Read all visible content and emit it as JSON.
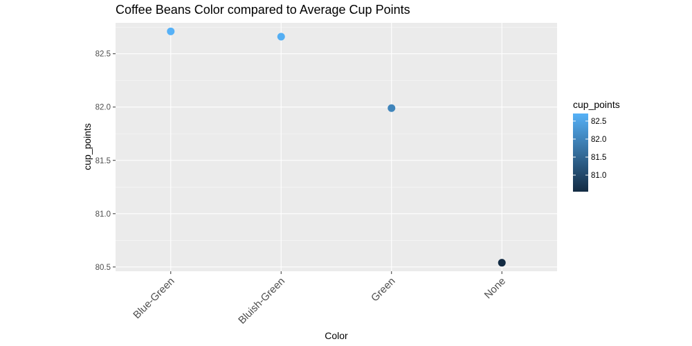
{
  "chart_data": {
    "type": "scatter",
    "title": "Coffee Beans Color compared to Average Cup Points",
    "xlabel": "Color",
    "ylabel": "cup_points",
    "categories": [
      "Blue-Green",
      "Bluish-Green",
      "Green",
      "None"
    ],
    "values": [
      82.71,
      82.66,
      81.99,
      80.54
    ],
    "ylim": [
      80.46,
      82.79
    ],
    "yticks": [
      80.5,
      81.0,
      81.5,
      82.0,
      82.5
    ],
    "ytick_labels": [
      "80.5",
      "81.0",
      "81.5",
      "82.0",
      "82.5"
    ],
    "grid": true,
    "x_tick_rotation_deg": 45,
    "legend": {
      "title": "cup_points",
      "type": "colorbar",
      "position": "right",
      "range": [
        80.54,
        82.71
      ],
      "ticks": [
        81.0,
        81.5,
        82.0,
        82.5
      ],
      "tick_labels": [
        "81.0",
        "81.5",
        "82.0",
        "82.5"
      ]
    },
    "colors": {
      "panel_background": "#ebebeb",
      "gridline": "#ffffff",
      "gradient_low": "#132b43",
      "gradient_high": "#56b1f7"
    }
  }
}
